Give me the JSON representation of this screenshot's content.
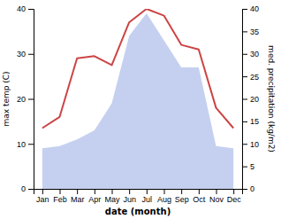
{
  "chart_data": {
    "type": "line",
    "categories": [
      "Jan",
      "Feb",
      "Mar",
      "Apr",
      "May",
      "Jun",
      "Jul",
      "Aug",
      "Sep",
      "Oct",
      "Nov",
      "Dec"
    ],
    "xlabel": "date (month)",
    "ylabel": "max temp (C)",
    "y2label": "med. precipitation (kg/m2)",
    "ylim": [
      0,
      40
    ],
    "yticks": [
      0,
      10,
      20,
      30,
      40
    ],
    "y2lim": [
      0,
      40
    ],
    "y2ticks": [
      0,
      5,
      10,
      15,
      20,
      25,
      30,
      35,
      40
    ],
    "grid": false,
    "series": [
      {
        "type": "area",
        "axis": "y2",
        "color": "#c5d0f0",
        "values": [
          9,
          9.5,
          11,
          13,
          19,
          34,
          39,
          33,
          27,
          27,
          9.5,
          9
        ]
      },
      {
        "type": "line",
        "color": "#cc4444",
        "values": [
          13.5,
          16,
          29,
          29.5,
          27.5,
          37,
          40,
          38.5,
          32,
          31,
          18,
          13.5
        ]
      }
    ]
  }
}
